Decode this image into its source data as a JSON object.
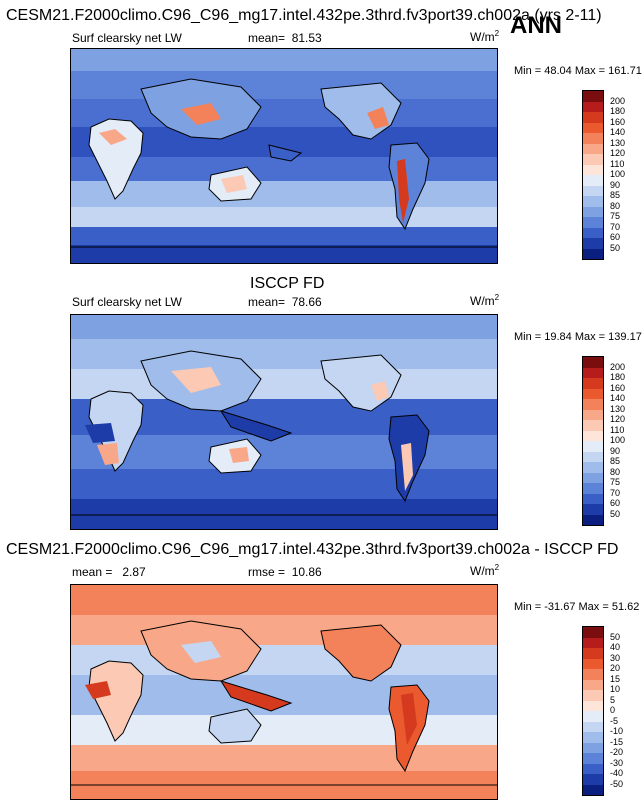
{
  "header": {
    "title": "CESM21.F2000climo.C96_C96_mg17.intel.432pe.3thrd.fv3port39.ch002a (yrs 2-11)",
    "season": "ANN"
  },
  "panels": [
    {
      "id": "model",
      "title": "",
      "variable": "Surf clearsky net LW",
      "mean_label": "mean=",
      "mean": "81.53",
      "units": "W/m",
      "units_exp": "2",
      "minmax": "Min =  48.04 Max = 161.71",
      "colorbar_labels": [
        "200",
        "180",
        "160",
        "140",
        "130",
        "120",
        "110",
        "100",
        "90",
        "85",
        "80",
        "75",
        "70",
        "60",
        "50"
      ],
      "colorbar_colors": [
        "#7a0d0d",
        "#b71c1c",
        "#d63a1e",
        "#ea5a2e",
        "#f3825a",
        "#f8a888",
        "#fbc9b4",
        "#fde5d9",
        "#e4ecf8",
        "#c4d6f2",
        "#9fbceb",
        "#7ea1e2",
        "#5d83d8",
        "#3a5fc6",
        "#1d3ca8",
        "#0a1f80"
      ]
    },
    {
      "id": "obs",
      "title": "ISCCP FD",
      "variable": "Surf clearsky net LW",
      "mean_label": "mean=",
      "mean": "78.66",
      "units": "W/m",
      "units_exp": "2",
      "minmax": "Min =  19.84 Max = 139.17",
      "colorbar_labels": [
        "200",
        "180",
        "160",
        "140",
        "130",
        "120",
        "110",
        "100",
        "90",
        "85",
        "80",
        "75",
        "70",
        "60",
        "50"
      ],
      "colorbar_colors": [
        "#7a0d0d",
        "#b71c1c",
        "#d63a1e",
        "#ea5a2e",
        "#f3825a",
        "#f8a888",
        "#fbc9b4",
        "#fde5d9",
        "#e4ecf8",
        "#c4d6f2",
        "#9fbceb",
        "#7ea1e2",
        "#5d83d8",
        "#3a5fc6",
        "#1d3ca8",
        "#0a1f80"
      ]
    },
    {
      "id": "diff",
      "title": "CESM21.F2000climo.C96_C96_mg17.intel.432pe.3thrd.fv3port39.ch002a - ISCCP FD",
      "variable": "",
      "mean_label": "mean =",
      "mean": "2.87",
      "rmse_label": "rmse =",
      "rmse": "10.86",
      "units": "W/m",
      "units_exp": "2",
      "minmax": "Min = -31.67 Max =  51.62",
      "colorbar_labels": [
        "50",
        "40",
        "30",
        "20",
        "15",
        "10",
        "5",
        "0",
        "-5",
        "-10",
        "-15",
        "-20",
        "-30",
        "-40",
        "-50"
      ],
      "colorbar_colors": [
        "#7a0d0d",
        "#b71c1c",
        "#d63a1e",
        "#ea5a2e",
        "#f3825a",
        "#f8a888",
        "#fbc9b4",
        "#fde5d9",
        "#e4ecf8",
        "#c4d6f2",
        "#9fbceb",
        "#7ea1e2",
        "#5d83d8",
        "#3a5fc6",
        "#1d3ca8",
        "#0a1f80"
      ]
    }
  ]
}
